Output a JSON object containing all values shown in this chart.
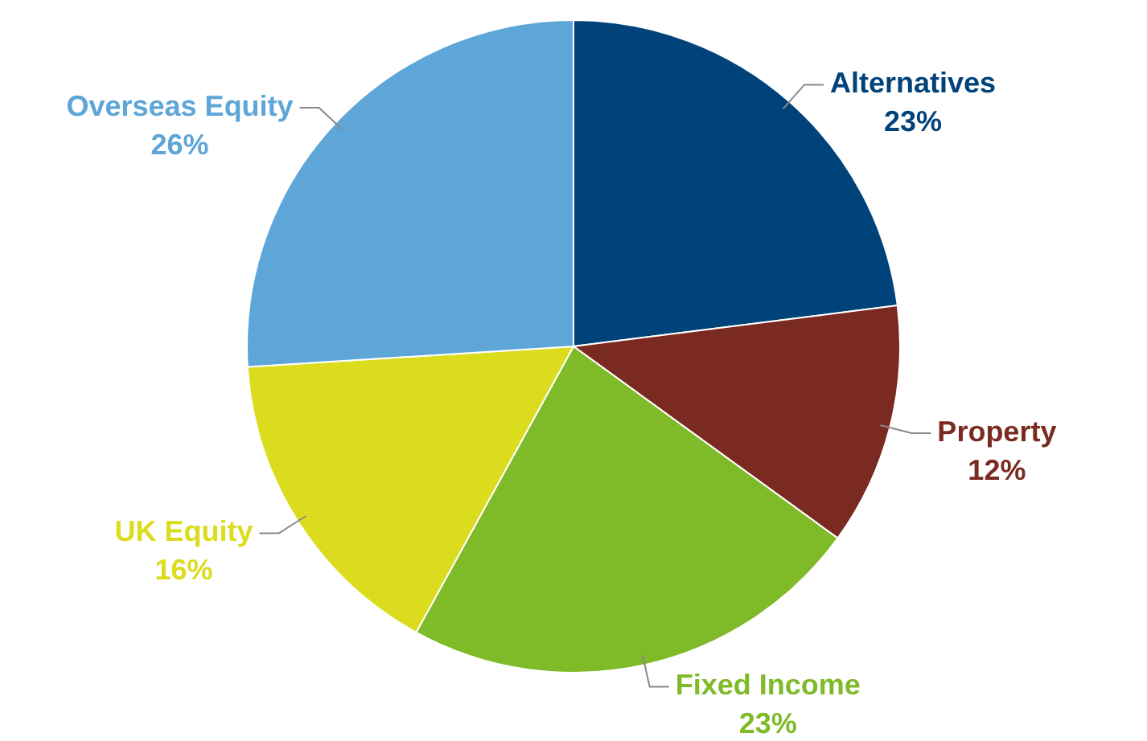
{
  "chart_data": {
    "type": "pie",
    "categories": [
      "Alternatives",
      "Property",
      "Fixed Income",
      "UK Equity",
      "Overseas Equity"
    ],
    "values": [
      23,
      12,
      23,
      16,
      26
    ],
    "value_labels": [
      "23%",
      "12%",
      "23%",
      "16%",
      "26%"
    ],
    "colors": [
      "#00427a",
      "#7b2a22",
      "#7fba28",
      "#dcdc1e",
      "#5ea5d8"
    ],
    "legend": false
  }
}
